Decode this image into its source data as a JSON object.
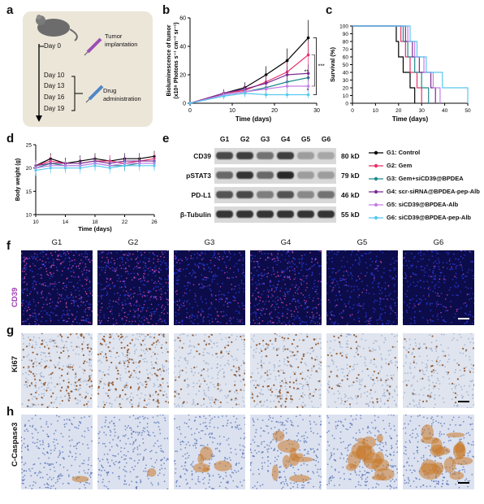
{
  "panels": {
    "a": "a",
    "b": "b",
    "c": "c",
    "d": "d",
    "e": "e",
    "f": "f",
    "g": "g",
    "h": "h"
  },
  "schedule": {
    "day0": "Day 0",
    "tumor": "Tumor implantation",
    "days": [
      "Day 10",
      "Day 13",
      "Day 16",
      "Day 19"
    ],
    "drug": "Drug administration"
  },
  "colors": {
    "G1": "#000000",
    "G2": "#e8326a",
    "G3": "#1f8a8a",
    "G4": "#7b2c91",
    "G5": "#c57ee8",
    "G6": "#58c8ef"
  },
  "chart_data": [
    {
      "type": "line",
      "xlabel": "Time (days)",
      "ylabel": "Bioluminescence of tumor (x10⁸ Photons s⁻¹ cm⁻² sr⁻¹)",
      "xlim": [
        0,
        30
      ],
      "ylim": [
        0,
        60
      ],
      "xticks": [
        0,
        10,
        20,
        30
      ],
      "yticks": [
        0,
        20,
        40,
        60
      ],
      "x": [
        0,
        8,
        13,
        18,
        23,
        28
      ],
      "series": [
        {
          "name": "G1: Control",
          "values": [
            0,
            7,
            11,
            20,
            30,
            46
          ]
        },
        {
          "name": "G2: Gem",
          "values": [
            0,
            7,
            9,
            15,
            22,
            34
          ]
        },
        {
          "name": "G3: Gem+siCD39@BPDEA",
          "values": [
            0,
            6,
            8,
            11,
            15,
            18
          ]
        },
        {
          "name": "G4: scr-siRNA@BPDEA-pep-Alb",
          "values": [
            0,
            7,
            10,
            14,
            20,
            21
          ]
        },
        {
          "name": "G5: siCD39@BPDEA-Alb",
          "values": [
            0,
            6,
            8,
            10,
            12,
            12
          ]
        },
        {
          "name": "G6: siCD39@BPDEA-pep-Alb",
          "values": [
            0,
            5,
            7,
            6,
            6,
            6
          ]
        }
      ],
      "sig": [
        "***",
        "**",
        "*"
      ]
    },
    {
      "type": "line",
      "xlabel": "Time (days)",
      "ylabel": "Survival (%)",
      "xlim": [
        0,
        50
      ],
      "ylim": [
        0,
        100
      ],
      "xticks": [
        0,
        10,
        20,
        30,
        40,
        50
      ],
      "yticks": [
        0,
        10,
        20,
        30,
        40,
        50,
        60,
        70,
        80,
        90,
        100
      ],
      "series": [
        {
          "name": "G1",
          "steps": [
            [
              0,
              100
            ],
            [
              19,
              100
            ],
            [
              19,
              80
            ],
            [
              20,
              80
            ],
            [
              20,
              60
            ],
            [
              22,
              60
            ],
            [
              22,
              40
            ],
            [
              25,
              40
            ],
            [
              25,
              20
            ],
            [
              27,
              20
            ],
            [
              27,
              0
            ]
          ]
        },
        {
          "name": "G2",
          "steps": [
            [
              0,
              100
            ],
            [
              21,
              100
            ],
            [
              21,
              80
            ],
            [
              23,
              80
            ],
            [
              23,
              60
            ],
            [
              25,
              60
            ],
            [
              25,
              40
            ],
            [
              28,
              40
            ],
            [
              28,
              20
            ],
            [
              30,
              20
            ],
            [
              30,
              0
            ]
          ]
        },
        {
          "name": "G3",
          "steps": [
            [
              0,
              100
            ],
            [
              22,
              100
            ],
            [
              22,
              80
            ],
            [
              24,
              80
            ],
            [
              24,
              60
            ],
            [
              27,
              60
            ],
            [
              27,
              40
            ],
            [
              30,
              40
            ],
            [
              30,
              20
            ],
            [
              33,
              20
            ],
            [
              33,
              0
            ]
          ]
        },
        {
          "name": "G4",
          "steps": [
            [
              0,
              100
            ],
            [
              23,
              100
            ],
            [
              23,
              80
            ],
            [
              26,
              80
            ],
            [
              26,
              60
            ],
            [
              29,
              60
            ],
            [
              29,
              40
            ],
            [
              34,
              40
            ],
            [
              34,
              20
            ],
            [
              36,
              20
            ],
            [
              36,
              0
            ]
          ]
        },
        {
          "name": "G5",
          "steps": [
            [
              0,
              100
            ],
            [
              24,
              100
            ],
            [
              24,
              80
            ],
            [
              27,
              80
            ],
            [
              27,
              60
            ],
            [
              31,
              60
            ],
            [
              31,
              40
            ],
            [
              35,
              40
            ],
            [
              35,
              20
            ],
            [
              38,
              20
            ],
            [
              38,
              0
            ]
          ]
        },
        {
          "name": "G6",
          "steps": [
            [
              0,
              100
            ],
            [
              25,
              100
            ],
            [
              25,
              80
            ],
            [
              28,
              80
            ],
            [
              28,
              60
            ],
            [
              32,
              60
            ],
            [
              32,
              40
            ],
            [
              39,
              40
            ],
            [
              39,
              20
            ],
            [
              50,
              20
            ],
            [
              50,
              0
            ]
          ]
        }
      ]
    },
    {
      "type": "line",
      "xlabel": "Time (days)",
      "ylabel": "Body weight (g)",
      "xlim": [
        10,
        26
      ],
      "ylim": [
        10,
        25
      ],
      "xticks": [
        10,
        14,
        18,
        22,
        26
      ],
      "yticks": [
        10,
        15,
        20,
        25
      ],
      "x": [
        10,
        12,
        14,
        16,
        18,
        20,
        22,
        24,
        26
      ],
      "series": [
        {
          "name": "G1",
          "values": [
            20.5,
            22,
            21,
            21.5,
            22,
            21.5,
            22,
            22,
            22.5
          ]
        },
        {
          "name": "G2",
          "values": [
            20.5,
            21.5,
            21,
            21,
            21.5,
            21.5,
            21,
            21.5,
            22
          ]
        },
        {
          "name": "G3",
          "values": [
            20,
            21,
            20.5,
            20.5,
            21,
            20.5,
            20.5,
            21,
            21
          ]
        },
        {
          "name": "G4",
          "values": [
            20.5,
            21,
            21,
            21,
            21.5,
            21,
            21.5,
            21.5,
            21.5
          ]
        },
        {
          "name": "G5",
          "values": [
            20,
            20.5,
            20.5,
            20.5,
            21,
            20.5,
            21,
            21,
            21
          ]
        },
        {
          "name": "G6",
          "values": [
            19.5,
            20,
            20,
            20,
            20.5,
            20,
            20.5,
            20.5,
            20.5
          ]
        }
      ]
    }
  ],
  "blot": {
    "groups": [
      "G1",
      "G2",
      "G3",
      "G4",
      "G5",
      "G6"
    ],
    "rows": [
      {
        "name": "CD39",
        "kd": "80 kD",
        "intensity": [
          0.75,
          0.8,
          0.55,
          0.8,
          0.35,
          0.3
        ]
      },
      {
        "name": "pSTAT3",
        "kd": "79 kD",
        "intensity": [
          0.6,
          0.85,
          0.6,
          0.9,
          0.35,
          0.35
        ]
      },
      {
        "name": "PD-L1",
        "kd": "46 kD",
        "intensity": [
          0.7,
          0.75,
          0.5,
          0.7,
          0.45,
          0.55
        ]
      },
      {
        "name": "β-Tubulin",
        "kd": "55 kD",
        "intensity": [
          0.85,
          0.85,
          0.85,
          0.85,
          0.85,
          0.85
        ]
      }
    ]
  },
  "legend": [
    "G1: Control",
    "G2: Gem",
    "G3: Gem+siCD39@BPDEA",
    "G4: scr-siRNA@BPDEA-pep-Alb",
    "G5: siCD39@BPDEA-Alb",
    "G6: siCD39@BPDEA-pep-Alb"
  ],
  "images": {
    "groups": [
      "G1",
      "G2",
      "G3",
      "G4",
      "G5",
      "G6"
    ],
    "rows": [
      {
        "label": "CD39",
        "cd39": [
          0.9,
          0.85,
          0.4,
          0.75,
          0.2,
          0.15
        ]
      },
      {
        "label": "Ki67",
        "ki": [
          0.8,
          0.85,
          0.4,
          0.65,
          0.35,
          0.25
        ]
      },
      {
        "label": "C-Caspase3",
        "casp": [
          0.05,
          0.05,
          0.3,
          0.5,
          0.75,
          0.85
        ]
      }
    ]
  }
}
